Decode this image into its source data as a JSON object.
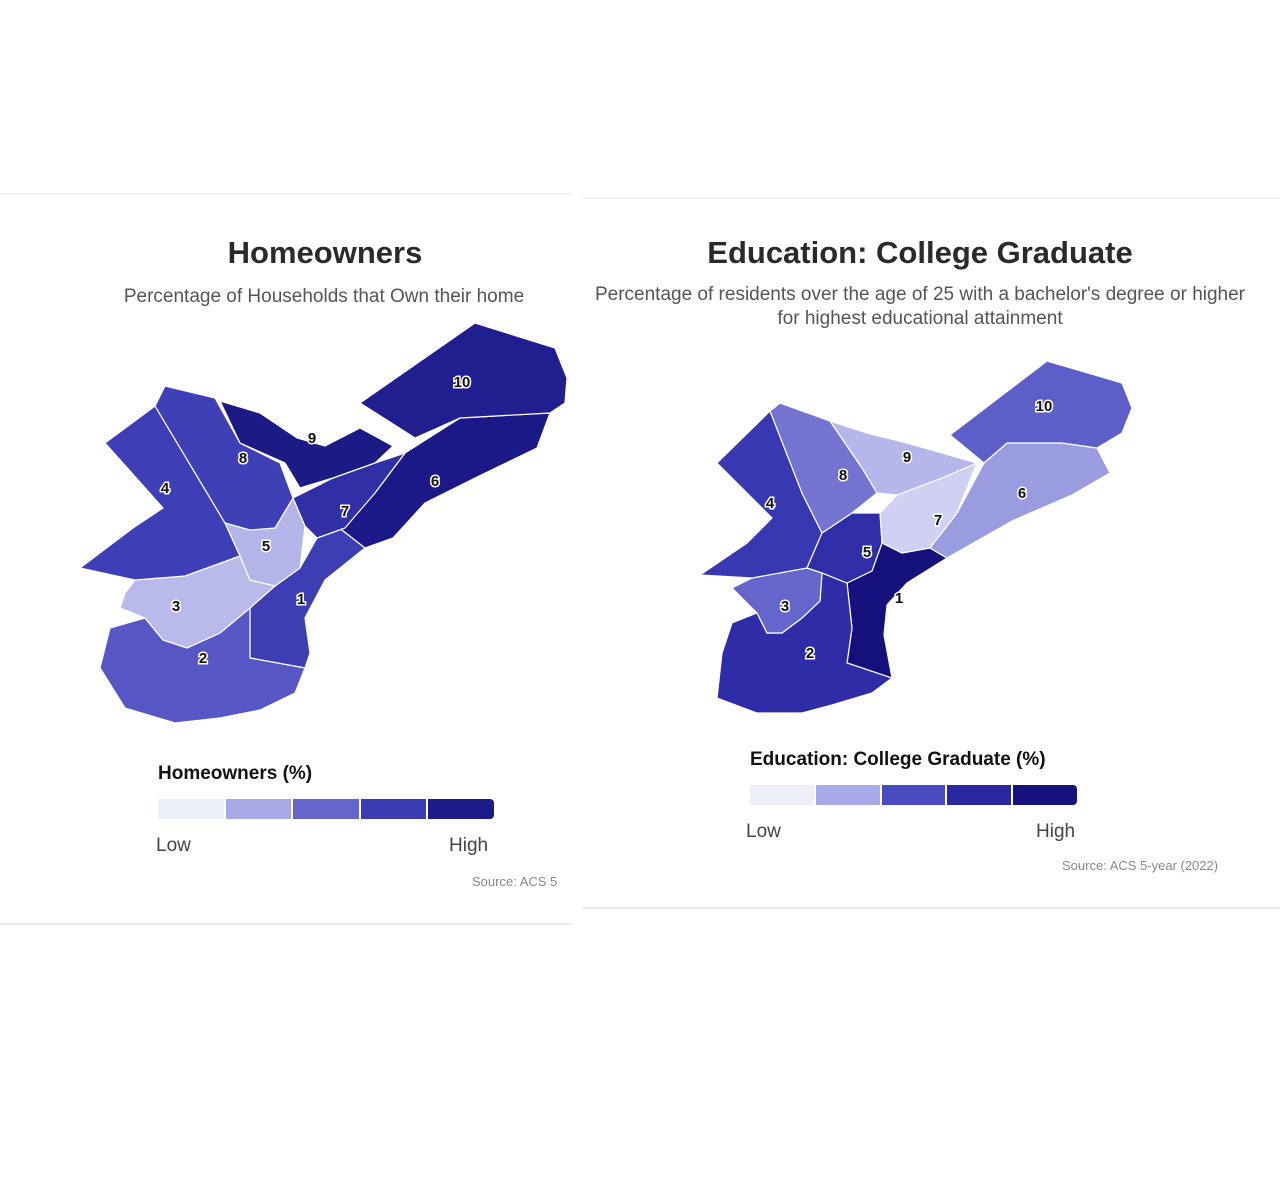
{
  "maps": [
    {
      "id": "homeowners",
      "title": "Homeowners",
      "subtitle": "Percentage of Households that Own their home",
      "legend_title": "Homeowners (%)",
      "legend_low": "Low",
      "legend_high": "High",
      "source": "Source: ACS 5",
      "scale_colors": [
        "#eceefa",
        "#a7aae6",
        "#6566cc",
        "#3b3bb4",
        "#1d1a8a"
      ],
      "districts": [
        {
          "id": "1",
          "label": "1",
          "color": "#3d3db4"
        },
        {
          "id": "2",
          "label": "2",
          "color": "#5657c4"
        },
        {
          "id": "3",
          "label": "3",
          "color": "#b9b9ea"
        },
        {
          "id": "4",
          "label": "4",
          "color": "#3e3eb6"
        },
        {
          "id": "5",
          "label": "5",
          "color": "#b3b4e8"
        },
        {
          "id": "6",
          "label": "6",
          "color": "#1b1887"
        },
        {
          "id": "7",
          "label": "7",
          "color": "#302fa6"
        },
        {
          "id": "8",
          "label": "8",
          "color": "#3f40b6"
        },
        {
          "id": "9",
          "label": "9",
          "color": "#1c1a84"
        },
        {
          "id": "10",
          "label": "10",
          "color": "#211f8f"
        }
      ]
    },
    {
      "id": "education",
      "title": "Education: College Graduate",
      "subtitle": "Percentage of residents over the age of 25 with a bachelor's degree or higher for highest educational attainment",
      "legend_title": "Education: College Graduate (%)",
      "legend_low": "Low",
      "legend_high": "High",
      "source": "Source: ACS 5-year (2022)",
      "scale_colors": [
        "#eceefa",
        "#a7aae6",
        "#4a4bc0",
        "#2a28a0",
        "#15127e"
      ],
      "districts": [
        {
          "id": "1",
          "label": "1",
          "color": "#15117c"
        },
        {
          "id": "2",
          "label": "2",
          "color": "#2e2ca6"
        },
        {
          "id": "3",
          "label": "3",
          "color": "#6466cc"
        },
        {
          "id": "4",
          "label": "4",
          "color": "#3838b2"
        },
        {
          "id": "5",
          "label": "5",
          "color": "#2f2ea8"
        },
        {
          "id": "6",
          "label": "6",
          "color": "#9a9ce0"
        },
        {
          "id": "7",
          "label": "7",
          "color": "#cfd0f2"
        },
        {
          "id": "8",
          "label": "8",
          "color": "#7274d0"
        },
        {
          "id": "9",
          "label": "9",
          "color": "#b5b6e9"
        },
        {
          "id": "10",
          "label": "10",
          "color": "#5d5fc8"
        }
      ]
    }
  ]
}
